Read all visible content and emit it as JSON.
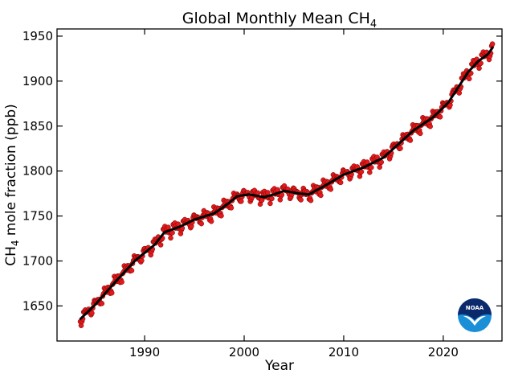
{
  "chart_data": {
    "type": "scatter",
    "title": "Global Monthly Mean CH",
    "title_subscript": "4",
    "xlabel": "Year",
    "ylabel_prefix": "CH",
    "ylabel_subscript": "4",
    "ylabel_suffix": " mole fraction (ppb)",
    "xlim": [
      1981.2,
      2025.9
    ],
    "ylim": [
      1611,
      1958
    ],
    "xticks": [
      1990,
      2000,
      2010,
      2020
    ],
    "yticks": [
      1650,
      1700,
      1750,
      1800,
      1850,
      1900,
      1950
    ],
    "grid": false,
    "colors": {
      "monthly_points": "#e31a1c",
      "monthly_edge": "#7a0000",
      "trend_line": "#000000",
      "logo_dark": "#0b2a6b",
      "logo_light": "#1a8fd8"
    },
    "logo_text": "NOAA",
    "trend_knots": [
      {
        "x": 1983.5,
        "y": 1635
      },
      {
        "x": 1985.0,
        "y": 1651
      },
      {
        "x": 1987.0,
        "y": 1676
      },
      {
        "x": 1989.0,
        "y": 1700
      },
      {
        "x": 1991.0,
        "y": 1718
      },
      {
        "x": 1992.0,
        "y": 1732
      },
      {
        "x": 1993.5,
        "y": 1738
      },
      {
        "x": 1995.0,
        "y": 1746
      },
      {
        "x": 1997.0,
        "y": 1753
      },
      {
        "x": 1998.3,
        "y": 1763
      },
      {
        "x": 1999.3,
        "y": 1772
      },
      {
        "x": 2000.5,
        "y": 1774
      },
      {
        "x": 2002.0,
        "y": 1771
      },
      {
        "x": 2003.0,
        "y": 1774
      },
      {
        "x": 2004.0,
        "y": 1778
      },
      {
        "x": 2005.5,
        "y": 1775
      },
      {
        "x": 2006.5,
        "y": 1774
      },
      {
        "x": 2008.0,
        "y": 1783
      },
      {
        "x": 2010.0,
        "y": 1796
      },
      {
        "x": 2012.0,
        "y": 1804
      },
      {
        "x": 2014.0,
        "y": 1815
      },
      {
        "x": 2015.5,
        "y": 1830
      },
      {
        "x": 2017.0,
        "y": 1845
      },
      {
        "x": 2019.0,
        "y": 1860
      },
      {
        "x": 2020.5,
        "y": 1876
      },
      {
        "x": 2021.5,
        "y": 1893
      },
      {
        "x": 2022.5,
        "y": 1910
      },
      {
        "x": 2023.5,
        "y": 1922
      },
      {
        "x": 2024.5,
        "y": 1930
      },
      {
        "x": 2025.0,
        "y": 1938
      }
    ],
    "seasonal_amplitude": 8,
    "series": [
      {
        "name": "monthly mean",
        "style": "points",
        "x_start": 1983.54,
        "x_end": 2025.0,
        "step": 0.0833
      },
      {
        "name": "trend",
        "style": "line"
      }
    ]
  }
}
